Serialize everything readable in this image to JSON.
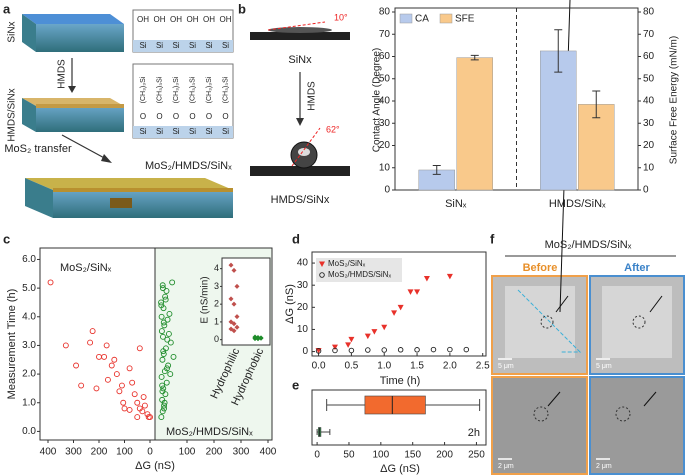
{
  "panel_labels": [
    "a",
    "b",
    "c",
    "d",
    "e",
    "f"
  ],
  "panel_a": {
    "rows": [
      "SiNx",
      "HMDS/SiNx"
    ],
    "step": "HMDS",
    "transfer": "MoS₂ transfer",
    "product": "MoS₂/HMDS/SiNₓ",
    "chemistry": {
      "hydroxyl": "OH",
      "silicon": "Si",
      "methylsilyl": "(CH₃)₃Si",
      "oxygen": "O"
    }
  },
  "panel_b_image": {
    "angles": [
      "10°",
      "62°"
    ],
    "samples": [
      "SiNx",
      "HMDS/SiNx"
    ],
    "step": "HMDS"
  },
  "chart_data": [
    {
      "type": "bar",
      "categories": [
        "SiNₓ",
        "HMDS/SiNₓ"
      ],
      "ylabel": "Contact Angle (Degree)",
      "y2label": "Surface Free Energy (mN/m)",
      "ylim": [
        0,
        80
      ],
      "yticks": [
        0,
        10,
        20,
        30,
        40,
        50,
        60,
        70,
        80
      ],
      "y2lim": [
        0,
        80
      ],
      "y2ticks": [
        0,
        10,
        20,
        30,
        40,
        50,
        60,
        70,
        80
      ],
      "legend": "upper left",
      "divider": true,
      "series": [
        {
          "name": "CA",
          "color": "#b7caec",
          "values": [
            9,
            62.5
          ],
          "errors": [
            2,
            9.5
          ]
        },
        {
          "name": "SFE",
          "color": "#f9c98b",
          "values": [
            59.5,
            38.5
          ],
          "errors": [
            1,
            6
          ],
          "axis": "y2"
        }
      ]
    },
    {
      "type": "scatter",
      "xlabel": "ΔG (nS)",
      "ylabel": "Measurement Time (h)",
      "ylim": [
        -0.3,
        6.4
      ],
      "yticks": [
        {
          "value": 0,
          "label": "0.0"
        },
        {
          "value": 1,
          "label": "1.0"
        },
        {
          "value": 2,
          "label": "2.0"
        },
        {
          "value": 3,
          "label": "3.0"
        },
        {
          "value": 4,
          "label": "4.0"
        },
        {
          "value": 5,
          "label": "5.0"
        },
        {
          "value": 6,
          "label": "6.0"
        }
      ],
      "series": [
        {
          "name": "MoS₂/SiNₓ",
          "color": "#e8312a",
          "background": "#ffffff",
          "xlim": [
            400,
            0
          ],
          "xticks": [
            400,
            300,
            200,
            100,
            0
          ],
          "x": [
            390,
            330,
            290,
            270,
            235,
            225,
            200,
            210,
            170,
            180,
            165,
            150,
            140,
            130,
            120,
            110,
            105,
            80,
            70,
            60,
            50,
            40,
            30,
            25,
            20,
            10,
            5,
            80,
            100,
            50,
            0,
            40
          ],
          "values": [
            5.2,
            3.0,
            2.3,
            1.6,
            3.1,
            3.5,
            2.6,
            1.5,
            3.0,
            2.6,
            1.8,
            2.3,
            2.5,
            2.0,
            1.4,
            1.6,
            1.0,
            2.2,
            1.7,
            1.3,
            1.0,
            0.8,
            0.7,
            1.2,
            0.9,
            0.6,
            0.5,
            0.75,
            0.8,
            0.5,
            0.5,
            2.9
          ]
        },
        {
          "name": "MoS₂/HMDS/SiNₓ",
          "color": "#1e8c2a",
          "background": "#eef7ee",
          "xlim": [
            0,
            400
          ],
          "xticks": [
            100,
            200,
            300,
            400
          ],
          "x": [
            5,
            10,
            15,
            8,
            20,
            12,
            25,
            6,
            18,
            30,
            9,
            14,
            22,
            40,
            11,
            7,
            16,
            28,
            35,
            13,
            4,
            19,
            24,
            10,
            45,
            17,
            8,
            26,
            12,
            33,
            6,
            21,
            15,
            9,
            38,
            50,
            27,
            14,
            5,
            11
          ],
          "values": [
            0.5,
            0.7,
            0.9,
            1.1,
            1.3,
            1.5,
            1.7,
            1.9,
            2.1,
            2.3,
            2.5,
            2.7,
            2.9,
            3.1,
            3.3,
            3.5,
            3.7,
            3.9,
            4.1,
            4.3,
            4.5,
            4.7,
            4.9,
            5.1,
            5.2,
            1.0,
            1.6,
            2.2,
            2.8,
            3.4,
            4.0,
            4.6,
            0.8,
            1.4,
            2.0,
            2.6,
            3.2,
            3.8,
            4.4,
            5.0
          ]
        }
      ]
    },
    {
      "type": "strip",
      "ylabel": "E (nS/min)",
      "ylim": [
        -0.3,
        4.6
      ],
      "yticks": [
        0,
        1,
        2,
        3,
        4
      ],
      "categories": [
        "Hydrophilic",
        "Hydrophobic"
      ],
      "series": [
        {
          "color": "#c0504d",
          "values": [
            4.2,
            3.9,
            3.0,
            2.3,
            2.0,
            1.3,
            1.0,
            0.9,
            0.7,
            0.6,
            0.5
          ]
        },
        {
          "color": "#1e8c2a",
          "values": [
            0.15,
            0.12,
            0.1,
            0.1,
            0.08,
            0.08,
            0.06,
            0.05
          ]
        }
      ]
    },
    {
      "type": "scatter",
      "xlabel": "Time (h)",
      "ylabel": "ΔG (nS)",
      "xlim": [
        -0.1,
        2.55
      ],
      "xticks": [
        {
          "value": 0,
          "label": "0.0"
        },
        {
          "value": 0.5,
          "label": "0.5"
        },
        {
          "value": 1,
          "label": "1.0"
        },
        {
          "value": 1.5,
          "label": "1.5"
        },
        {
          "value": 2,
          "label": "2.0"
        },
        {
          "value": 2.5,
          "label": "2.5"
        }
      ],
      "ylim": [
        -2,
        45
      ],
      "yticks": [
        0,
        10,
        20,
        30,
        40
      ],
      "legend": "upper left",
      "series": [
        {
          "name": "MoS₂/SiNₓ",
          "color": "#e8312a",
          "marker": "triangle",
          "x": [
            0,
            0.25,
            0.45,
            0.5,
            0.75,
            0.85,
            1.0,
            1.15,
            1.25,
            1.4,
            1.5,
            1.65,
            2.0
          ],
          "values": [
            0.5,
            2,
            3,
            5.5,
            7,
            9,
            11,
            17.5,
            20,
            27,
            27,
            33,
            34
          ]
        },
        {
          "name": "MoS₂/HMDS/SiNₓ",
          "color": "#222222",
          "marker": "circle",
          "x": [
            0,
            0.25,
            0.5,
            0.75,
            1.0,
            1.25,
            1.5,
            1.75,
            2.0,
            2.25
          ],
          "values": [
            0.3,
            0.5,
            0.5,
            0.7,
            0.7,
            0.8,
            0.8,
            0.9,
            0.9,
            0.9
          ]
        }
      ]
    },
    {
      "type": "box",
      "xlabel": "ΔG (nS)",
      "xlim": [
        -8,
        265
      ],
      "xticks": [
        0,
        50,
        100,
        150,
        200,
        250
      ],
      "annotation": "2h",
      "boxes": [
        {
          "color": "#f26a2e",
          "whisker_low": 15,
          "q1": 75,
          "median": 118,
          "q3": 170,
          "whisker_high": 255
        },
        {
          "color": "#2a9a4a",
          "whisker_low": 0,
          "q1": 2,
          "median": 4,
          "q3": 6,
          "whisker_high": 20
        }
      ]
    }
  ],
  "panel_f": {
    "title": "MoS₂/HMDS/SiNₓ",
    "columns": [
      "Before",
      "After"
    ],
    "scale_bars": [
      "5 μm",
      "2 μm"
    ]
  }
}
